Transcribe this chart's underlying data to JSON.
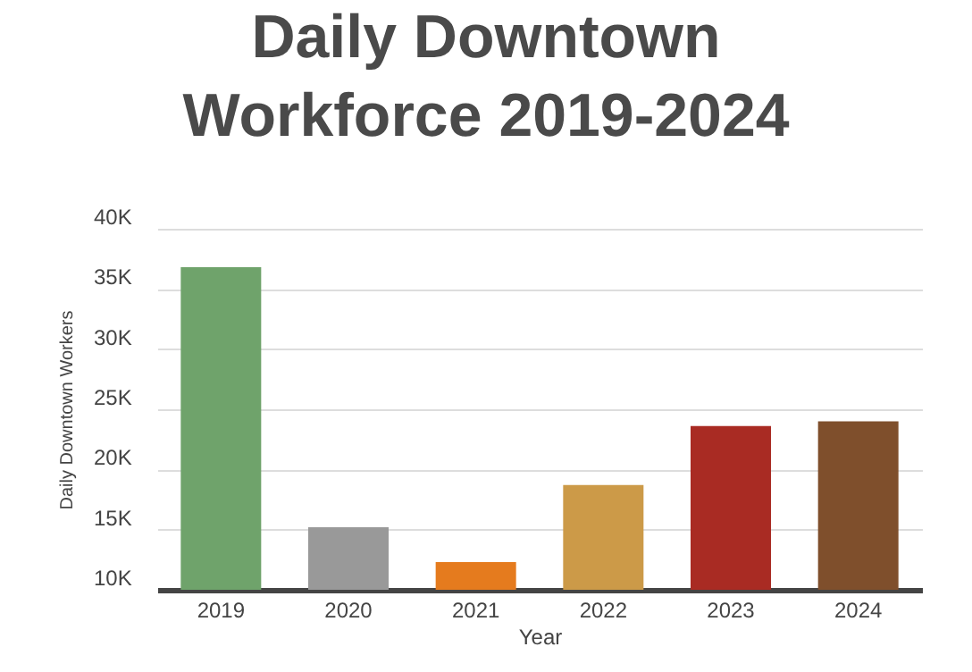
{
  "chart_data": {
    "type": "bar",
    "title": "Daily Downtown Workforce 2019-2024",
    "xlabel": "Year",
    "ylabel": "Daily Downtown Workers",
    "categories": [
      "2019",
      "2020",
      "2021",
      "2022",
      "2023",
      "2024"
    ],
    "values": [
      36800,
      15200,
      12300,
      18700,
      23600,
      24000
    ],
    "colors": [
      "#6fa36b",
      "#999999",
      "#e57b1e",
      "#cc9a48",
      "#a92b23",
      "#7f4f2c"
    ],
    "ylim": [
      10000,
      40000
    ],
    "yticks": [
      {
        "value": 10000,
        "label": "10K"
      },
      {
        "value": 15000,
        "label": "15K"
      },
      {
        "value": 20000,
        "label": "20K"
      },
      {
        "value": 25000,
        "label": "25K"
      },
      {
        "value": 30000,
        "label": "30K"
      },
      {
        "value": 35000,
        "label": "35K"
      },
      {
        "value": 40000,
        "label": "40K"
      }
    ],
    "grid": true
  }
}
